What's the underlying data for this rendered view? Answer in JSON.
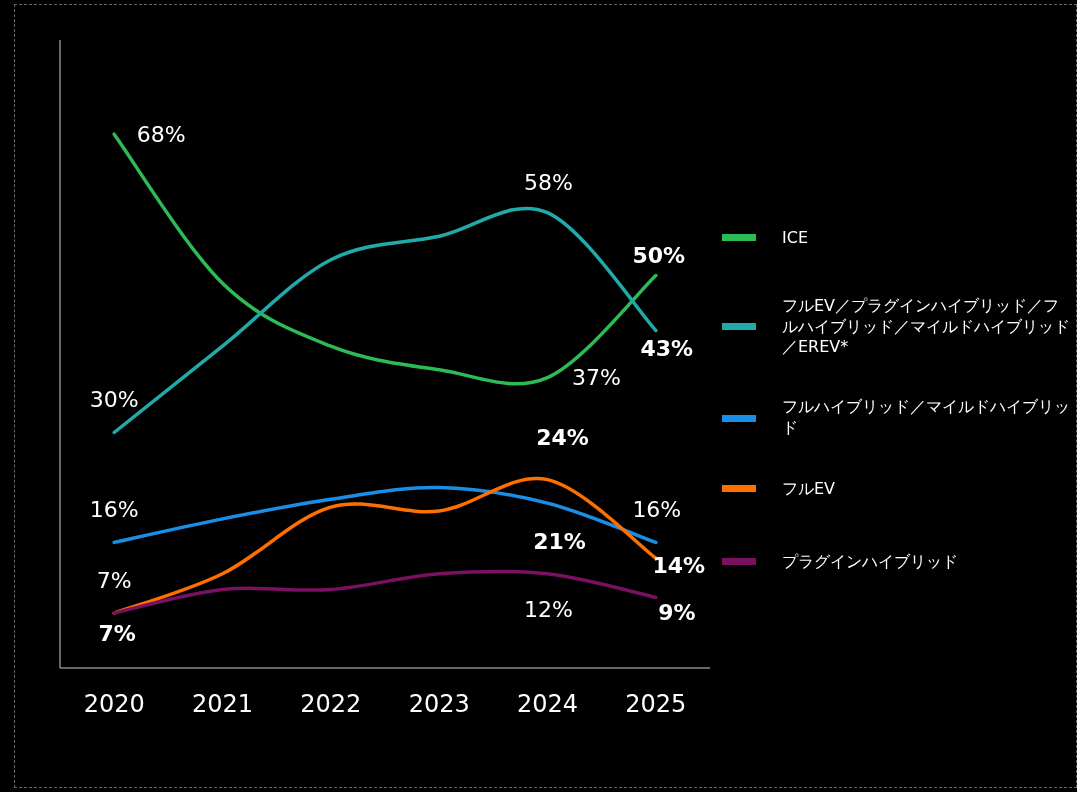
{
  "chart_data": {
    "type": "line",
    "categories": [
      "2020",
      "2021",
      "2022",
      "2023",
      "2024",
      "2025"
    ],
    "ylim": [
      0,
      80
    ],
    "tick_labels": "x",
    "legend": "right",
    "line_style": "solid",
    "series": [
      {
        "name": "ICE",
        "color": "#2dbb55",
        "values": [
          68,
          49,
          41,
          38,
          37,
          50
        ],
        "value_labels": [
          "68%",
          null,
          null,
          null,
          "37%",
          "50%"
        ]
      },
      {
        "name": "フルEV／プラグインハイブリッド／フルハイブリッド／マイルドハイブリッド／EREV*",
        "color": "#22aaaa",
        "values": [
          30,
          41,
          52,
          55,
          58,
          43
        ],
        "value_labels": [
          "30%",
          null,
          null,
          null,
          "58%",
          "43%"
        ]
      },
      {
        "name": "フルハイブリッド／マイルドハイブリッド",
        "color": "#1a8ee6",
        "values": [
          16,
          19,
          21.5,
          23,
          21,
          16
        ],
        "value_labels": [
          "16%",
          null,
          null,
          null,
          "21%",
          "16%"
        ]
      },
      {
        "name": "フルEV",
        "color": "#ff6f00",
        "values": [
          7,
          12,
          20.5,
          20,
          24,
          14
        ],
        "value_labels": [
          "7%",
          null,
          null,
          null,
          "24%",
          "14%"
        ]
      },
      {
        "name": "プラグインハイブリッド",
        "color": "#7a1060",
        "values": [
          7,
          10,
          10,
          12,
          12,
          9
        ],
        "value_labels": [
          "7%",
          null,
          null,
          null,
          "12%",
          "9%"
        ]
      }
    ]
  }
}
